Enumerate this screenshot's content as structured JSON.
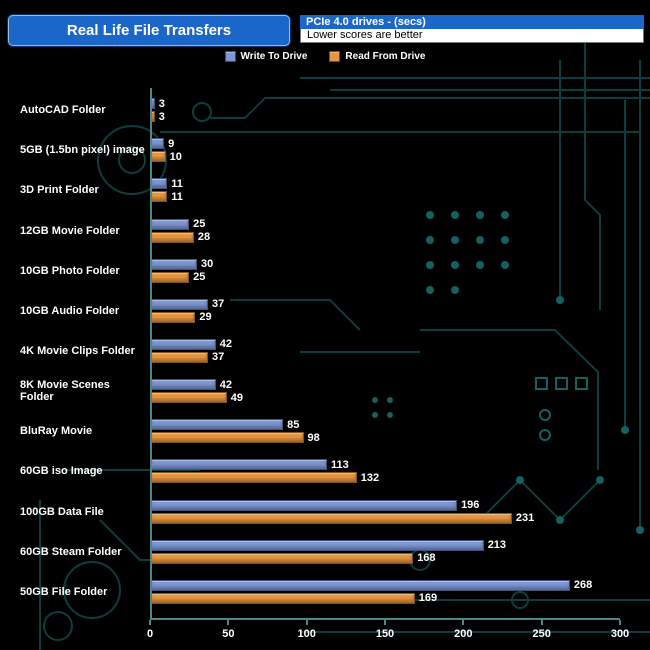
{
  "header": {
    "title": "Real Life File Transfers",
    "subtitle_primary": "PCIe 4.0 drives - (secs)",
    "subtitle_secondary": "Lower scores are better"
  },
  "legend": {
    "items": [
      {
        "label": "Write To  Drive",
        "color": "#7d97d6"
      },
      {
        "label": "Read From  Drive",
        "color": "#e8963f"
      }
    ]
  },
  "chart_data": {
    "type": "bar",
    "orientation": "horizontal",
    "title": "Real Life File Transfers",
    "unit": "secs",
    "lower_is_better": true,
    "categories": [
      "AutoCAD Folder",
      "5GB (1.5bn pixel) image",
      "3D Print Folder",
      "12GB Movie Folder",
      "10GB Photo Folder",
      "10GB Audio Folder",
      "4K Movie Clips Folder",
      "8K Movie Scenes Folder",
      "BluRay Movie",
      "60GB iso Image",
      "100GB Data File",
      "60GB Steam Folder",
      "50GB File Folder"
    ],
    "series": [
      {
        "name": "Write To Drive",
        "color": "#7d97d6",
        "values": [
          3,
          9,
          11,
          25,
          30,
          37,
          42,
          42,
          85,
          113,
          196,
          213,
          268
        ]
      },
      {
        "name": "Read From Drive",
        "color": "#e8963f",
        "values": [
          3,
          10,
          11,
          28,
          25,
          29,
          37,
          49,
          98,
          132,
          231,
          168,
          169
        ]
      }
    ],
    "xlim": [
      0,
      300
    ],
    "xticks": [
      0,
      50,
      100,
      150,
      200,
      250,
      300
    ],
    "grid": false,
    "legend_position": "top-center"
  },
  "colors": {
    "background": "#000000",
    "header_blue": "#1b67c9",
    "axis": "#4d8888",
    "circuit_dark": "#0d3d3d",
    "circuit_bright": "#156060",
    "text": "#ffffff"
  }
}
